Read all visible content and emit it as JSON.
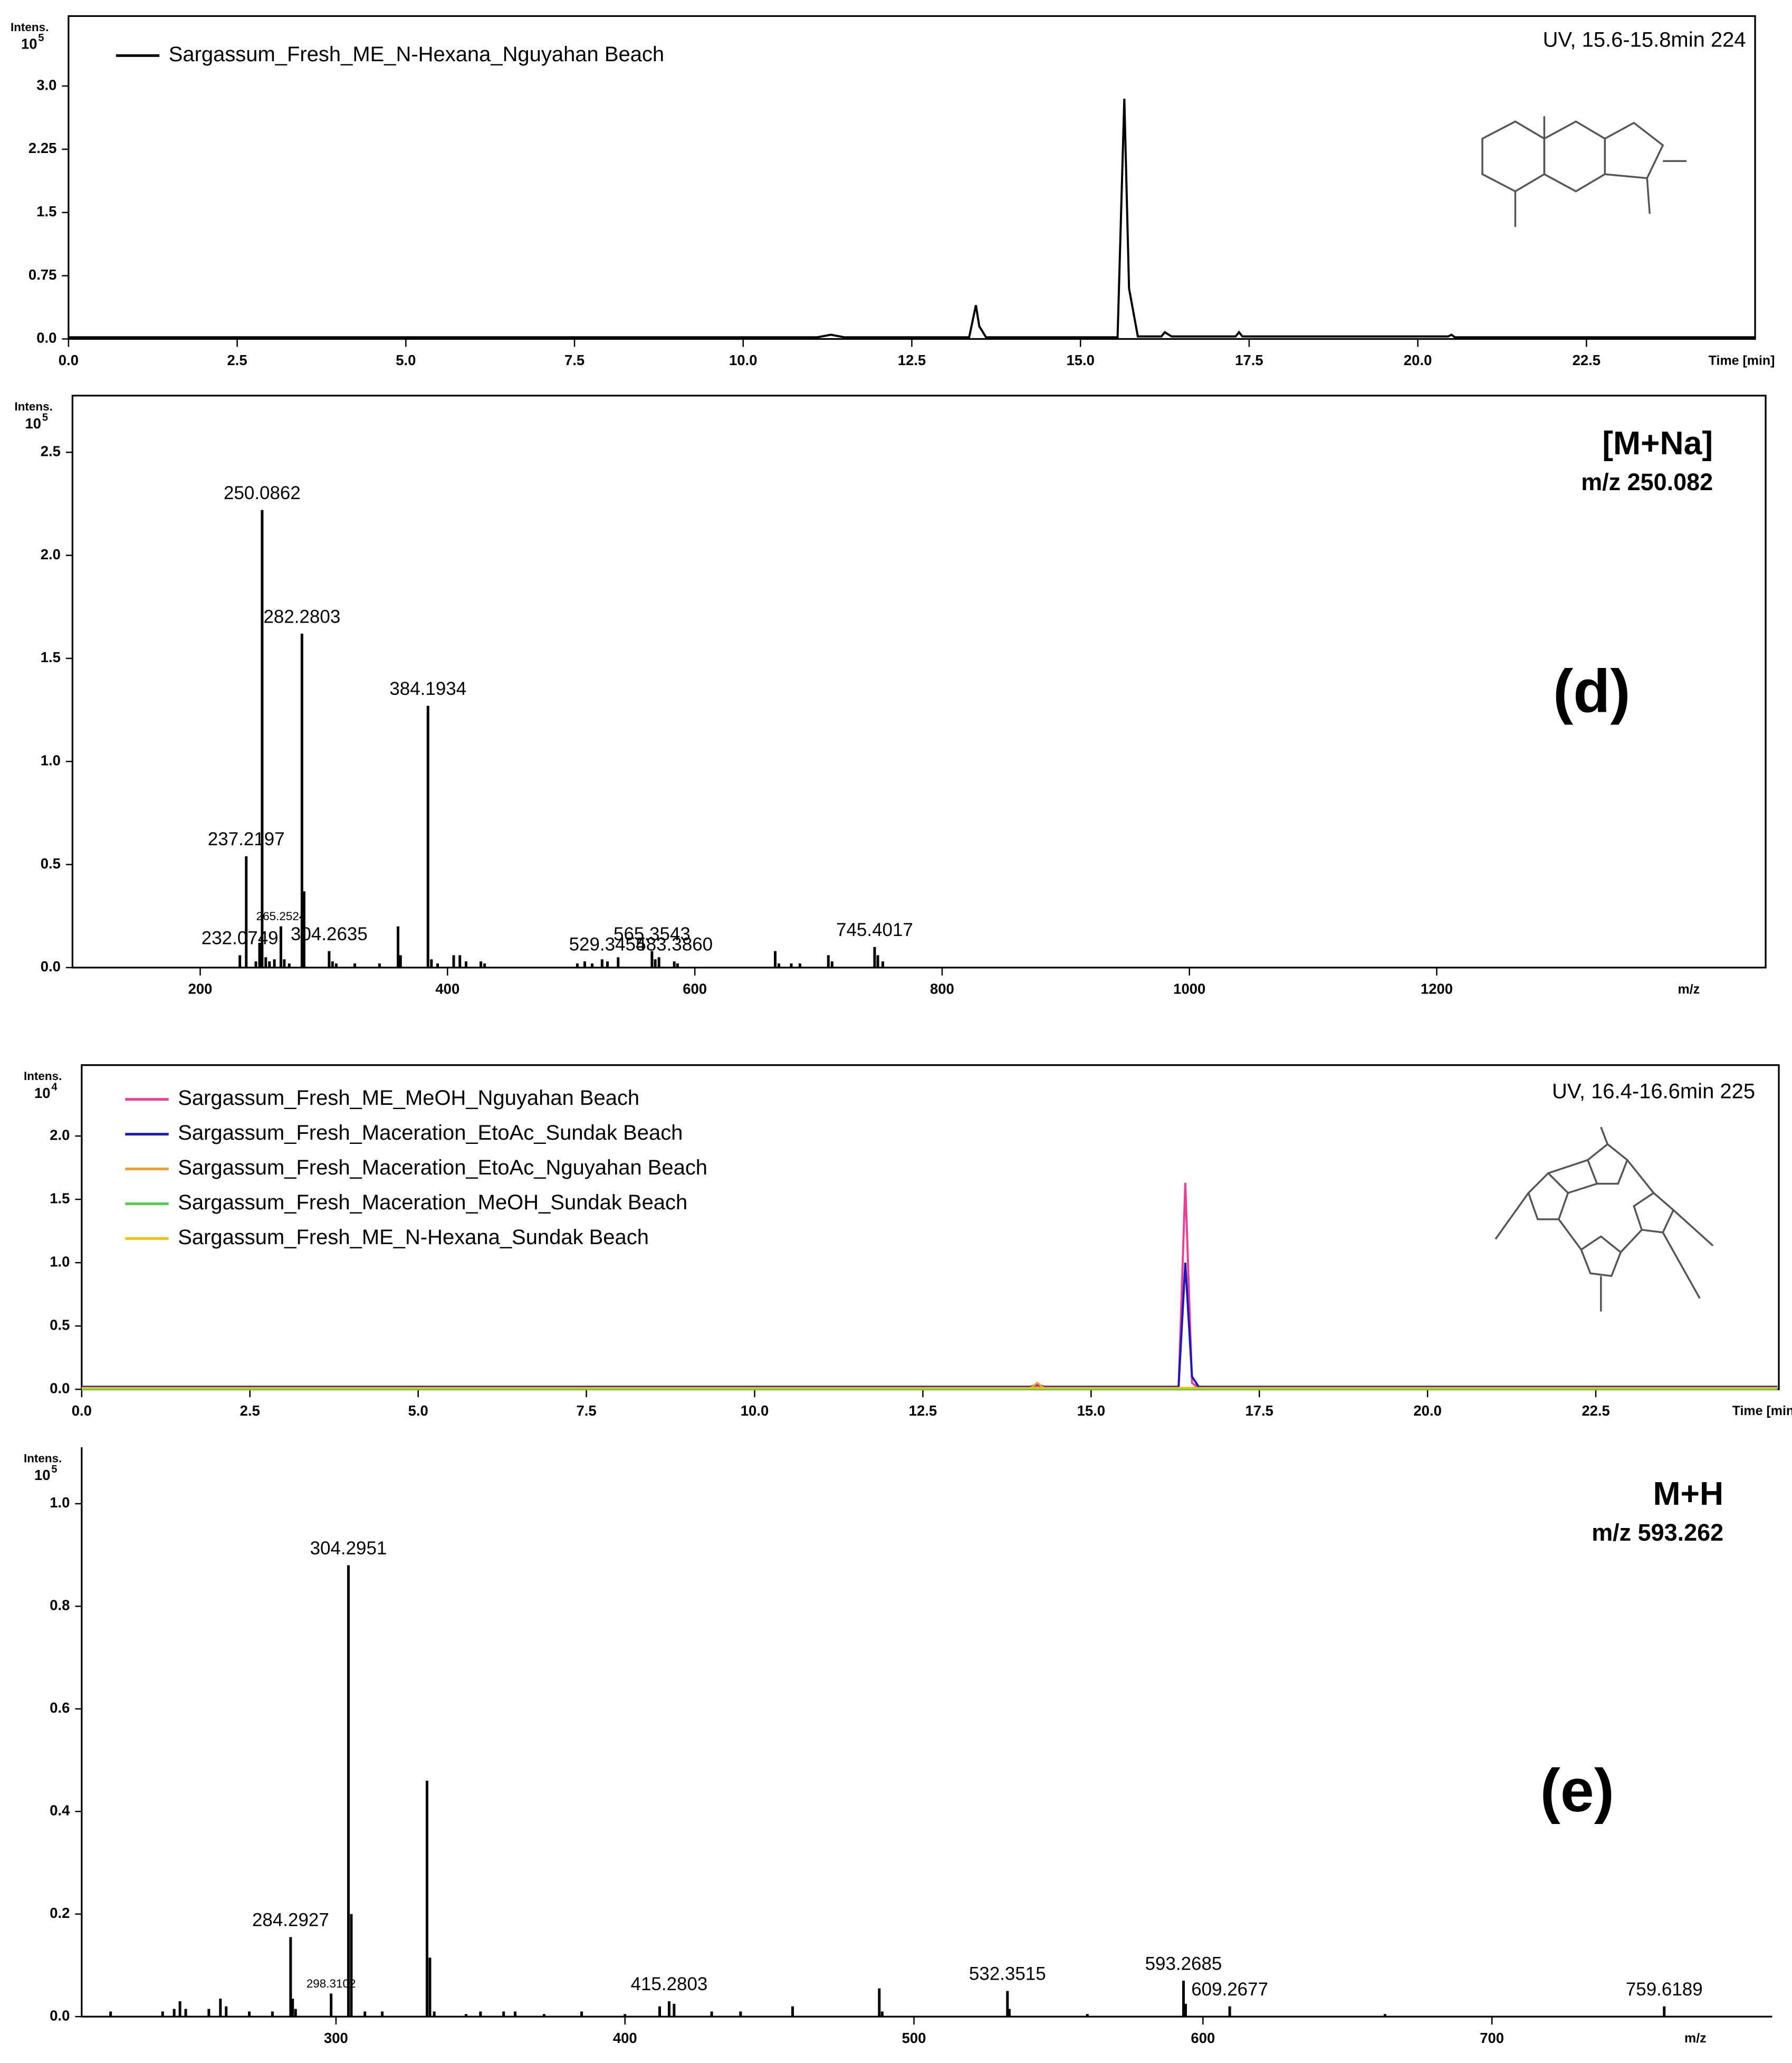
{
  "chart_data": [
    {
      "type": "line",
      "ylabel": "Intens.",
      "y_multiplier": "10",
      "y_exponent": 5,
      "xlabel": "Time [min]",
      "annotation": "UV, 15.6-15.8min 224",
      "x": [
        0,
        11.1,
        11.3,
        11.5,
        13.35,
        13.45,
        13.5,
        13.6,
        15.55,
        15.65,
        15.72,
        15.85,
        16.2,
        16.25,
        16.35,
        17.3,
        17.35,
        17.4,
        20.45,
        20.5,
        20.55,
        25.0
      ],
      "series": [
        {
          "name": "Sargassum_Fresh_ME_N-Hexana_Nguyahan Beach",
          "color": "#000000",
          "values": [
            0.02,
            0.02,
            0.05,
            0.02,
            0.02,
            0.4,
            0.15,
            0.02,
            0.02,
            2.85,
            0.6,
            0.03,
            0.03,
            0.08,
            0.03,
            0.03,
            0.08,
            0.03,
            0.03,
            0.05,
            0.02,
            0.02
          ]
        }
      ],
      "xlim": [
        0,
        25.0
      ],
      "ylim": [
        0,
        3.83
      ],
      "xticks": [
        {
          "value": 0,
          "label": "0.0"
        },
        2.5,
        {
          "value": 5,
          "label": "5.0"
        },
        7.5,
        {
          "value": 10,
          "label": "10.0"
        },
        12.5,
        {
          "value": 15,
          "label": "15.0"
        },
        17.5,
        {
          "value": 20,
          "label": "20.0"
        },
        22.5
      ],
      "yticks": [
        {
          "value": 0,
          "label": "0.0"
        },
        0.75,
        1.5,
        2.25,
        {
          "value": 3,
          "label": "3.0"
        }
      ]
    },
    {
      "type": "bar",
      "ylabel": "Intens.",
      "y_multiplier": "10",
      "y_exponent": 5,
      "xlabel": "m/z",
      "ion_label": "[M+Na]",
      "mz_label": "m/z 250.082",
      "panel_label": "(d)",
      "color": "#000000",
      "x": [
        232.0749,
        237.2197,
        245,
        248,
        250.0862,
        253,
        256,
        260,
        265.2524,
        268,
        272,
        282.2803,
        284,
        304.2635,
        307,
        310,
        325,
        345,
        360,
        362,
        384.1934,
        387,
        392,
        405,
        410,
        415,
        427,
        430,
        505,
        511,
        517,
        525,
        529.3454,
        538,
        565.3543,
        568,
        571,
        583.386,
        586,
        665,
        668,
        678,
        685,
        708,
        711,
        745.4017,
        748,
        752
      ],
      "values": [
        0.06,
        0.54,
        0.03,
        0.12,
        2.22,
        0.05,
        0.03,
        0.04,
        0.2,
        0.04,
        0.02,
        1.62,
        0.37,
        0.08,
        0.03,
        0.02,
        0.02,
        0.02,
        0.2,
        0.06,
        1.27,
        0.04,
        0.02,
        0.06,
        0.06,
        0.03,
        0.03,
        0.02,
        0.02,
        0.03,
        0.02,
        0.04,
        0.03,
        0.05,
        0.08,
        0.04,
        0.05,
        0.03,
        0.02,
        0.08,
        0.02,
        0.02,
        0.02,
        0.06,
        0.03,
        0.1,
        0.06,
        0.03
      ],
      "x_labels": [
        "232.0749",
        "237.2197",
        null,
        null,
        "250.0862",
        null,
        null,
        null,
        "265.2524",
        null,
        null,
        "282.2803",
        null,
        "304.2635",
        null,
        null,
        null,
        null,
        null,
        null,
        "384.1934",
        null,
        null,
        null,
        null,
        null,
        null,
        null,
        null,
        null,
        null,
        null,
        "529.3454",
        null,
        "565.3543",
        null,
        null,
        "583.3860",
        null,
        null,
        null,
        null,
        null,
        null,
        null,
        "745.4017",
        null,
        null
      ],
      "xlim": [
        96.7,
        1466
      ],
      "ylim": [
        0,
        2.775
      ],
      "xticks": [
        200,
        400,
        600,
        800,
        1000,
        1200
      ],
      "yticks": [
        {
          "value": 0,
          "label": "0.0"
        },
        0.5,
        {
          "value": 1,
          "label": "1.0"
        },
        1.5,
        {
          "value": 2,
          "label": "2.0"
        },
        2.5
      ]
    },
    {
      "type": "line",
      "ylabel": "Intens.",
      "y_multiplier": "10",
      "y_exponent": 4,
      "xlabel": "Time [min]",
      "annotation": "UV, 16.4-16.6min 225",
      "x": [
        0,
        14.1,
        14.2,
        14.3,
        16.3,
        16.4,
        16.5,
        16.6,
        25.2
      ],
      "series": [
        {
          "name": "Sargassum_Fresh_ME_MeOH_Nguyahan Beach",
          "color": "#e8409a",
          "values": [
            0.01,
            0.01,
            0.03,
            0.01,
            0.01,
            1.63,
            0.05,
            0.01,
            0.01
          ]
        },
        {
          "name": "Sargassum_Fresh_Maceration_EtoAc_Sundak Beach",
          "color": "#1a1ab8",
          "values": [
            0.02,
            0.02,
            0.04,
            0.02,
            0.02,
            1.0,
            0.1,
            0.02,
            0.02
          ]
        },
        {
          "name": "Sargassum_Fresh_Maceration_EtoAc_Nguyahan Beach",
          "color": "#f0a030",
          "values": [
            0.01,
            0.01,
            0.05,
            0.01,
            0.01,
            0.01,
            0.01,
            0.01,
            0.01
          ]
        },
        {
          "name": "Sargassum_Fresh_Maceration_MeOH_Sundak Beach",
          "color": "#50d050",
          "values": [
            0,
            0,
            0,
            0,
            0,
            0,
            0,
            0,
            0
          ]
        },
        {
          "name": "Sargassum_Fresh_ME_N-Hexana_Sundak Beach",
          "color": "#f5c000",
          "values": [
            0.01,
            0.01,
            0.01,
            0.01,
            0.01,
            0.01,
            0.01,
            0.01,
            0.01
          ]
        }
      ],
      "xlim": [
        0,
        25.22
      ],
      "ylim": [
        0,
        2.56
      ],
      "xticks": [
        {
          "value": 0,
          "label": "0.0"
        },
        2.5,
        {
          "value": 5,
          "label": "5.0"
        },
        7.5,
        {
          "value": 10,
          "label": "10.0"
        },
        12.5,
        {
          "value": 15,
          "label": "15.0"
        },
        17.5,
        {
          "value": 20,
          "label": "20.0"
        },
        22.5
      ],
      "yticks": [
        {
          "value": 0,
          "label": "0.0"
        },
        0.5,
        {
          "value": 1,
          "label": "1.0"
        },
        1.5,
        {
          "value": 2,
          "label": "2.0"
        }
      ]
    },
    {
      "type": "bar",
      "ylabel": "Intens.",
      "y_multiplier": "10",
      "y_exponent": 5,
      "xlabel": "m/z",
      "ion_label": "M+H",
      "mz_label": "m/z 593.262",
      "panel_label": "(e)",
      "color": "#000000",
      "x": [
        222,
        240,
        244,
        246,
        248,
        256,
        260,
        262,
        270,
        278,
        284.2927,
        285,
        286,
        298.3102,
        304.2951,
        305.3,
        310,
        316,
        331.5,
        332.5,
        334,
        345,
        350,
        358,
        362,
        372,
        385,
        400,
        412,
        415.2803,
        417,
        430,
        440,
        458,
        488,
        489,
        532.3515,
        533,
        560,
        593.2685,
        594,
        609.2677,
        663,
        759.6189
      ],
      "values": [
        0.01,
        0.01,
        0.015,
        0.03,
        0.015,
        0.015,
        0.035,
        0.02,
        0.01,
        0.01,
        0.155,
        0.035,
        0.015,
        0.045,
        0.88,
        0.2,
        0.01,
        0.01,
        0.46,
        0.115,
        0.01,
        0.005,
        0.01,
        0.01,
        0.01,
        0.005,
        0.01,
        0.005,
        0.02,
        0.03,
        0.025,
        0.01,
        0.01,
        0.02,
        0.055,
        0.01,
        0.05,
        0.015,
        0.005,
        0.07,
        0.025,
        0.02,
        0.005,
        0.02
      ],
      "x_labels": [
        null,
        null,
        null,
        null,
        null,
        null,
        null,
        null,
        null,
        null,
        "284.2927",
        null,
        null,
        "298.3102",
        "304.2951",
        null,
        null,
        null,
        null,
        null,
        null,
        null,
        null,
        null,
        null,
        null,
        null,
        null,
        null,
        "415.2803",
        null,
        null,
        null,
        null,
        null,
        null,
        "532.3515",
        null,
        null,
        "593.2685",
        null,
        "609.2677",
        null,
        "759.6189"
      ],
      "xlim": [
        212,
        797
      ],
      "ylim": [
        0,
        1.11
      ],
      "xticks": [
        300,
        400,
        500,
        600,
        700
      ],
      "yticks": [
        {
          "value": 0,
          "label": "0.0"
        },
        0.2,
        0.4,
        0.6,
        0.8,
        {
          "value": 1,
          "label": "1.0"
        }
      ]
    }
  ]
}
